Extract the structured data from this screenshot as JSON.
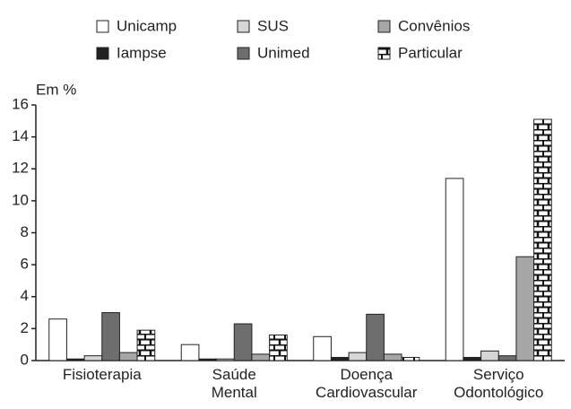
{
  "chart_data": {
    "type": "bar",
    "y_label": "Em %",
    "categories": [
      "Fisioterapia",
      "Saúde\nMental",
      "Doença\nCardiovascular",
      "Serviço\nOdontológico"
    ],
    "series": [
      {
        "name": "Unicamp",
        "color": "#ffffff",
        "values": [
          2.6,
          1.0,
          1.5,
          11.4
        ]
      },
      {
        "name": "Iampse",
        "color": "#222222",
        "values": [
          0.1,
          0.1,
          0.2,
          0.2
        ]
      },
      {
        "name": "SUS",
        "color": "#d6d6d6",
        "values": [
          0.3,
          0.1,
          0.5,
          0.6
        ]
      },
      {
        "name": "Unimed",
        "color": "#6e6e6e",
        "values": [
          3.0,
          2.3,
          2.9,
          0.3
        ]
      },
      {
        "name": "Convênios",
        "color": "#a6a6a6",
        "values": [
          0.5,
          0.4,
          0.4,
          6.5
        ]
      },
      {
        "name": "Particular",
        "color": "#ffffff",
        "pattern": "brick",
        "values": [
          1.9,
          1.6,
          0.2,
          15.1
        ]
      }
    ],
    "ylim": [
      0,
      16
    ],
    "yticks": [
      0,
      2,
      4,
      6,
      8,
      10,
      12,
      14,
      16
    ],
    "grid": false
  }
}
